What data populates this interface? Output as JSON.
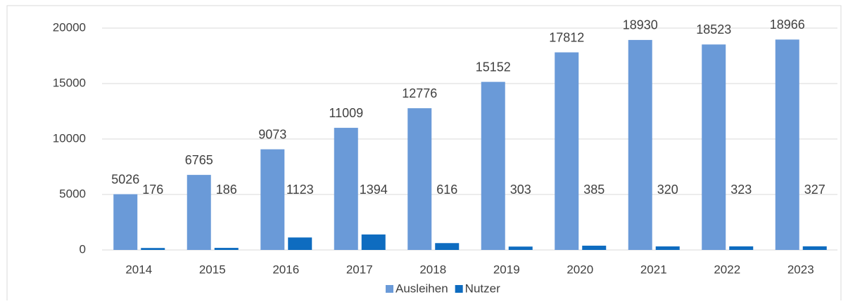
{
  "chart_data": {
    "type": "bar",
    "categories": [
      "2014",
      "2015",
      "2016",
      "2017",
      "2018",
      "2019",
      "2020",
      "2021",
      "2022",
      "2023"
    ],
    "series": [
      {
        "name": "Ausleihen",
        "color": "#6a9ad8",
        "values": [
          5026,
          6765,
          9073,
          11009,
          12776,
          15152,
          17812,
          18930,
          18523,
          18966
        ]
      },
      {
        "name": "Nutzer",
        "color": "#0e6cc0",
        "values": [
          176,
          186,
          1123,
          1394,
          616,
          303,
          385,
          320,
          323,
          327
        ]
      }
    ],
    "ylim": [
      0,
      20000
    ],
    "yticks": [
      0,
      5000,
      10000,
      15000,
      20000
    ],
    "grid": true,
    "legend": "bottom"
  }
}
